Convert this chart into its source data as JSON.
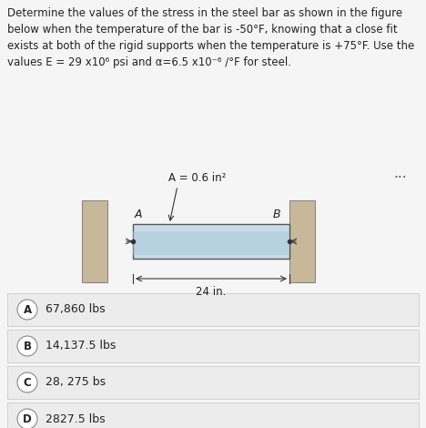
{
  "background_color": "#f5f5f5",
  "question_text": "Determine the values of the stress in the steel bar as shown in the figure\nbelow when the temperature of the bar is -50°F, knowing that a close fit\nexists at both of the rigid supports when the temperature is +75°F. Use the\nvalues E = 29 x10⁶ psi and α=6.5 x10⁻⁶ /°F for steel.",
  "area_label": "A = 0.6 in²",
  "label_A": "A",
  "label_B": "B",
  "dim_label": "24 in.",
  "dots": "...",
  "choices": [
    {
      "letter": "A",
      "text": "67,860 lbs"
    },
    {
      "letter": "B",
      "text": "14,137.5 lbs"
    },
    {
      "letter": "C",
      "text": "28, 275 bs"
    },
    {
      "letter": "D",
      "text": "2827.5 lbs"
    }
  ],
  "wall_color": "#c8b89a",
  "bar_color_top": "#c8dce8",
  "bar_color_mid": "#a8c8dc",
  "bar_edge_color": "#555555",
  "choice_bg": "#f0f0f0",
  "choice_border": "#aaaaaa",
  "text_color": "#222222",
  "fig_width": 4.68,
  "fig_height": 4.7
}
